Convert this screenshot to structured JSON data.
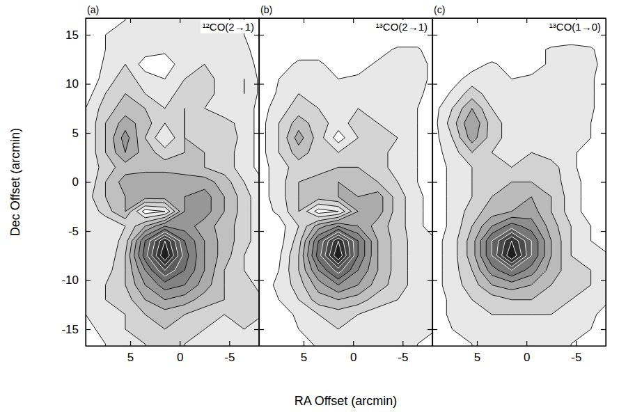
{
  "chart_data": [
    {
      "type": "contour",
      "panel_label": "(a)",
      "title": "¹²CO(2→1)",
      "y_label": "Dec Offset (arcmin)",
      "xlim": [
        9.5,
        -8
      ],
      "ylim": [
        -16.7,
        16.7
      ],
      "xticks": [
        5,
        0,
        -5
      ],
      "yticks": [
        -15,
        -10,
        -5,
        0,
        5,
        10,
        15
      ],
      "levels": [
        1,
        2,
        3,
        4,
        5,
        6,
        7,
        8,
        9,
        10,
        11
      ],
      "x": [
        9.5,
        7.5,
        5.5,
        3.5,
        1.5,
        -0.5,
        -2.5,
        -4.5,
        -6.5,
        -8.5
      ],
      "y": [
        16.5,
        15,
        13.5,
        12,
        10.5,
        9,
        7.5,
        6,
        4.5,
        3,
        1.5,
        0,
        -1.5,
        -3,
        -4.5,
        -6,
        -7.5,
        -9,
        -10.5,
        -12,
        -13.5,
        -15,
        -16.5
      ],
      "z": [
        [
          0,
          0,
          1,
          1,
          1,
          1,
          1,
          1,
          1,
          0
        ],
        [
          0,
          1,
          1.5,
          1.5,
          1.5,
          1.5,
          1.5,
          1,
          1,
          0.5
        ],
        [
          0,
          1,
          1.5,
          1.5,
          1.2,
          1.5,
          1.5,
          1.5,
          1.2,
          0.5
        ],
        [
          0,
          1.2,
          2,
          0.5,
          0.5,
          1.5,
          2,
          1.2,
          1.5,
          0.5
        ],
        [
          0,
          1.5,
          2.5,
          1.5,
          1,
          2,
          2.5,
          1.5,
          2,
          0.5
        ],
        [
          0.5,
          2,
          3,
          2,
          1.5,
          2.5,
          2.5,
          1.5,
          2,
          0.5
        ],
        [
          1,
          2.5,
          3.5,
          3,
          2,
          3,
          2,
          1.2,
          1.5,
          0.5
        ],
        [
          1,
          3,
          4.5,
          3.5,
          2,
          3,
          2,
          2.5,
          1.5,
          0.5
        ],
        [
          1,
          3,
          5.5,
          3,
          1,
          3,
          2.5,
          3,
          1.5,
          0.5
        ],
        [
          1,
          3,
          5,
          3.5,
          2.5,
          3,
          3,
          2.5,
          1.5,
          0.5
        ],
        [
          1,
          2.5,
          3.5,
          3.5,
          3.5,
          3.5,
          3,
          2.5,
          1.5,
          0.5
        ],
        [
          1,
          3,
          4.5,
          5,
          5,
          4.5,
          4.5,
          3.5,
          2,
          1
        ],
        [
          1.5,
          3,
          4,
          4.5,
          4.5,
          5,
          5.5,
          4,
          2.5,
          1
        ],
        [
          1,
          2.5,
          4,
          0.5,
          1,
          5,
          5.5,
          4,
          2.5,
          1
        ],
        [
          1,
          1,
          2,
          4,
          6,
          5.5,
          4.5,
          3.5,
          2.5,
          1
        ],
        [
          1,
          1,
          2.5,
          7,
          11,
          7,
          5,
          3.5,
          2.5,
          1
        ],
        [
          1,
          1,
          3,
          7.5,
          12,
          7.5,
          5,
          3.5,
          2,
          1
        ],
        [
          1,
          1.5,
          3,
          6,
          9,
          7,
          5,
          3,
          2,
          1
        ],
        [
          1,
          2,
          3,
          5,
          6.5,
          6,
          4.5,
          3,
          2.5,
          1.5
        ],
        [
          1,
          2,
          2.5,
          4,
          5,
          4.5,
          3.5,
          3,
          2.5,
          2
        ],
        [
          1,
          1.5,
          2,
          3,
          3.5,
          3,
          2.5,
          2,
          2.5,
          2
        ],
        [
          0.5,
          1.5,
          2,
          2.5,
          3,
          2.5,
          2,
          1.5,
          2,
          1.5
        ],
        [
          0.5,
          1,
          1.5,
          2,
          2.5,
          2,
          1.5,
          1,
          1,
          1
        ]
      ]
    },
    {
      "type": "contour",
      "panel_label": "(b)",
      "title": "¹³CO(2→1)",
      "x_label": "RA Offset (arcmin)",
      "tick_labels": "x",
      "xlim": [
        9.5,
        -8
      ],
      "ylim": [
        -16.7,
        16.7
      ],
      "xticks": [
        5,
        0,
        -5
      ],
      "yticks": [
        -15,
        -10,
        -5,
        0,
        5,
        10,
        15
      ],
      "levels": [
        1,
        2,
        3,
        4,
        5,
        6,
        7,
        8,
        9,
        10,
        11
      ],
      "x": [
        9.5,
        7.5,
        5.5,
        3.5,
        1.5,
        -0.5,
        -2.5,
        -4.5,
        -6.5,
        -8.5
      ],
      "y": [
        16.5,
        15,
        13.5,
        12,
        10.5,
        9,
        7.5,
        6,
        4.5,
        3,
        1.5,
        0,
        -1.5,
        -3,
        -4.5,
        -6,
        -7.5,
        -9,
        -10.5,
        -12,
        -13.5,
        -15,
        -16.5
      ],
      "z": [
        [
          0,
          0,
          0,
          0,
          0,
          0,
          0,
          0,
          0,
          0
        ],
        [
          0,
          0,
          0,
          0,
          0,
          0,
          0,
          0,
          0,
          0
        ],
        [
          0,
          0,
          0.5,
          0.5,
          0.5,
          0.5,
          0.5,
          1.2,
          1.2,
          0
        ],
        [
          0,
          0.5,
          1.2,
          1.2,
          0.5,
          0.5,
          1.2,
          1.5,
          1.5,
          0.5
        ],
        [
          0,
          1,
          1.5,
          1.5,
          1,
          1.2,
          1.5,
          1.2,
          1.5,
          0.5
        ],
        [
          0,
          1.2,
          2,
          1.5,
          1,
          1.5,
          1.5,
          1,
          1.2,
          0.5
        ],
        [
          0.5,
          1.5,
          2.5,
          2,
          1.5,
          2,
          1.5,
          1,
          1,
          0.5
        ],
        [
          0.5,
          2,
          3.5,
          2.5,
          1.5,
          2.5,
          2,
          1.5,
          1,
          0.5
        ],
        [
          0.5,
          2,
          4.5,
          2.5,
          0.5,
          2,
          2,
          2,
          1,
          0.5
        ],
        [
          0.5,
          2,
          3.5,
          2.5,
          2,
          2.5,
          2.5,
          1.5,
          1,
          0.5
        ],
        [
          0.5,
          1.5,
          2.5,
          2.5,
          3,
          3,
          2.5,
          1.5,
          1,
          0.5
        ],
        [
          0.5,
          1.5,
          3,
          3.5,
          4,
          3.5,
          3,
          2,
          1,
          0.5
        ],
        [
          0.5,
          1.5,
          3,
          3.5,
          4,
          4,
          4.5,
          2.5,
          1.2,
          0.5
        ],
        [
          0.5,
          1.2,
          3,
          0.5,
          1,
          4,
          4.5,
          2.5,
          1.2,
          0.5
        ],
        [
          0.5,
          0.5,
          2,
          4.5,
          6,
          5,
          3.5,
          2.5,
          1.2,
          0.5
        ],
        [
          0.5,
          0.5,
          2.5,
          7,
          11,
          7,
          4,
          2.5,
          1.5,
          1
        ],
        [
          0.5,
          0.8,
          3,
          7.5,
          12,
          7,
          4,
          2.5,
          1.5,
          1
        ],
        [
          0.5,
          1,
          3,
          6,
          8.5,
          6,
          4,
          2.5,
          1.5,
          1
        ],
        [
          0.5,
          1.2,
          2.5,
          4.5,
          6,
          5,
          3.5,
          2.5,
          1.5,
          1
        ],
        [
          0.5,
          1,
          2,
          3.5,
          4,
          3.5,
          2.5,
          2,
          1.5,
          1
        ],
        [
          0,
          0.5,
          1.2,
          2,
          2.5,
          2,
          1.5,
          1.5,
          1.5,
          1
        ],
        [
          0,
          0.5,
          1,
          1.5,
          2,
          1.5,
          1.2,
          1.2,
          1.2,
          1
        ],
        [
          0,
          0,
          0.5,
          1.2,
          1.5,
          1.2,
          1,
          1,
          1,
          0.5
        ]
      ]
    },
    {
      "type": "contour",
      "panel_label": "(c)",
      "title": "¹³CO(1→0)",
      "tick_labels": "x",
      "xlim": [
        9.5,
        -8
      ],
      "ylim": [
        -16.7,
        16.7
      ],
      "xticks": [
        5,
        0,
        -5
      ],
      "yticks": [
        -15,
        -10,
        -5,
        0,
        5,
        10,
        15
      ],
      "levels": [
        1,
        2,
        3,
        4,
        5,
        6,
        7,
        8,
        9,
        10
      ],
      "x": [
        9.5,
        7.5,
        5.5,
        3.5,
        1.5,
        -0.5,
        -2.5,
        -4.5,
        -6.5,
        -8.5
      ],
      "y": [
        16.5,
        15,
        13.5,
        12,
        10.5,
        9,
        7.5,
        6,
        4.5,
        3,
        1.5,
        0,
        -1.5,
        -3,
        -4.5,
        -6,
        -7.5,
        -9,
        -10.5,
        -12,
        -13.5,
        -15,
        -16.5
      ],
      "z": [
        [
          0,
          0,
          0,
          0,
          0,
          0,
          0,
          0,
          0,
          0
        ],
        [
          0,
          0,
          0,
          0,
          0,
          0,
          0,
          0,
          0,
          0
        ],
        [
          0,
          0,
          0,
          0,
          0,
          0.5,
          1.2,
          1.5,
          1.2,
          0
        ],
        [
          0,
          0,
          0.5,
          1.2,
          0.5,
          0.5,
          1.2,
          1.5,
          1.5,
          0
        ],
        [
          0,
          0.5,
          1.5,
          1.2,
          1,
          1.2,
          1.2,
          1.2,
          1.2,
          0
        ],
        [
          0,
          1.2,
          2.5,
          1.5,
          1.2,
          1.2,
          1.2,
          1,
          1.2,
          0
        ],
        [
          0.5,
          2,
          4,
          2,
          1.5,
          1.2,
          1.2,
          1,
          1.2,
          0
        ],
        [
          0.5,
          2.5,
          5,
          2.5,
          1.5,
          1.5,
          1.5,
          1.2,
          1,
          0
        ],
        [
          0.5,
          2,
          4.5,
          2.5,
          1.5,
          1.5,
          1.5,
          1.2,
          1,
          0
        ],
        [
          0.5,
          1.5,
          3,
          2,
          1.5,
          2,
          1.5,
          1.2,
          0.5,
          0
        ],
        [
          0.5,
          1.2,
          2,
          2,
          2,
          2.5,
          2.5,
          1.2,
          0.5,
          0
        ],
        [
          0.5,
          1.2,
          2,
          2.5,
          3,
          3,
          2.5,
          1.5,
          0.5,
          0
        ],
        [
          0.5,
          1.2,
          2,
          3,
          3.5,
          4,
          3,
          1.5,
          0.5,
          0
        ],
        [
          0.5,
          1.2,
          2.5,
          3.5,
          4,
          4.5,
          3,
          1.5,
          0.5,
          0
        ],
        [
          0.5,
          1.2,
          3,
          5,
          6.5,
          5.5,
          3.5,
          2,
          1,
          0
        ],
        [
          0.5,
          1.5,
          3.5,
          7,
          10,
          7,
          4,
          2,
          1,
          0.5
        ],
        [
          0.5,
          1.5,
          3.5,
          7,
          11,
          7,
          4,
          2,
          1.5,
          1
        ],
        [
          0.5,
          1.5,
          3,
          5.5,
          7,
          5.5,
          3.5,
          2.5,
          2,
          1.2
        ],
        [
          0.5,
          1.5,
          2.5,
          4,
          4.5,
          4,
          3,
          2.5,
          2,
          1.2
        ],
        [
          0.5,
          1.2,
          2,
          2.5,
          3,
          3,
          2.5,
          2,
          1.5,
          1
        ],
        [
          0.5,
          1.2,
          1.5,
          2,
          2,
          2,
          2,
          1.5,
          1.2,
          0.5
        ],
        [
          0.5,
          1,
          1.2,
          1.5,
          1.5,
          1.5,
          1.5,
          1.2,
          1,
          0.5
        ],
        [
          0,
          0.5,
          1,
          1.2,
          1.2,
          1.2,
          1.2,
          1,
          0.5,
          0
        ]
      ]
    }
  ]
}
